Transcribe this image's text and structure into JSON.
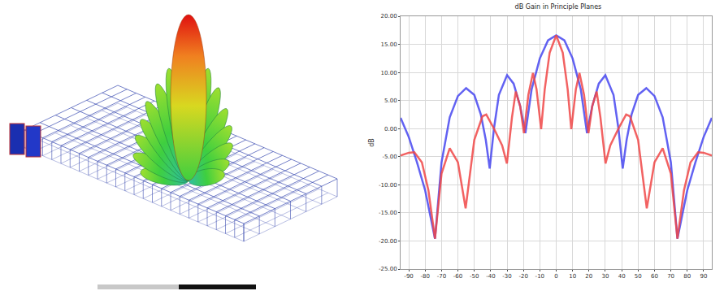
{
  "chart_data": {
    "type": "line",
    "title": "dB Gain in Principle Planes",
    "y_label": "dB",
    "xlim": [
      -95,
      95
    ],
    "xticks": [
      -90,
      -80,
      -70,
      -60,
      -50,
      -40,
      -30,
      -20,
      -10,
      0,
      10,
      20,
      30,
      40,
      50,
      60,
      70,
      80,
      90
    ],
    "ylim": [
      -25,
      20
    ],
    "yticks": [
      {
        "value": -25,
        "label": "-25.00"
      },
      {
        "value": -20,
        "label": "-20.00"
      },
      {
        "value": -15,
        "label": "-15.00"
      },
      {
        "value": -10,
        "label": "-10.00"
      },
      {
        "value": -5,
        "label": "-5.00"
      },
      {
        "value": 0,
        "label": "0.00"
      },
      {
        "value": 5,
        "label": "5.00"
      },
      {
        "value": 10,
        "label": "10.00"
      },
      {
        "value": 15,
        "label": "15.00"
      },
      {
        "value": 20,
        "label": "20.00"
      }
    ],
    "grid": true,
    "series": [
      {
        "color": "#4646f0",
        "line_style": "solid",
        "x": [
          -95,
          -90,
          -85,
          -80,
          -74,
          -70,
          -65,
          -60,
          -55,
          -50,
          -46,
          -43,
          -40.6,
          -38,
          -35,
          -30,
          -26,
          -22,
          -18.8,
          -15,
          -10,
          -5,
          0,
          5,
          10,
          15,
          18.8,
          22,
          26,
          30,
          35,
          38,
          40.6,
          43,
          46,
          50,
          55,
          60,
          65,
          70,
          74,
          80,
          85,
          90,
          95
        ],
        "values": [
          1.9,
          -1.5,
          -6,
          -11,
          -19.6,
          -6,
          2,
          5.8,
          7.2,
          6,
          2.5,
          -2,
          -7.1,
          0,
          6,
          9.5,
          8,
          4,
          -0.8,
          7,
          12.5,
          15.7,
          16.6,
          15.7,
          12.5,
          7,
          -0.8,
          4,
          8,
          9.5,
          6,
          0,
          -7.1,
          -2,
          2.5,
          6,
          7.2,
          5.8,
          2,
          -6,
          -19.6,
          -11,
          -6,
          -1.5,
          1.9
        ]
      },
      {
        "color": "#f04646",
        "line_style": "solid",
        "x": [
          -95,
          -90,
          -86.6,
          -82,
          -78,
          -74,
          -70,
          -65,
          -60,
          -55.3,
          -50,
          -45,
          -42.7,
          -38,
          -33,
          -30.1,
          -27,
          -24.7,
          -22,
          -19.7,
          -17,
          -14.2,
          -12,
          -9.2,
          -7,
          -4,
          0,
          4,
          7,
          9.2,
          12,
          14.2,
          17,
          19.7,
          22,
          24.7,
          27,
          30.1,
          33,
          38,
          42.7,
          45,
          50,
          55.3,
          60,
          65,
          70,
          74,
          78,
          82,
          86.6,
          90,
          95
        ],
        "values": [
          -4.8,
          -4.3,
          -4.2,
          -6,
          -11,
          -19.6,
          -8,
          -3.5,
          -6,
          -14.2,
          -2,
          2.2,
          2.5,
          0,
          -3,
          -6.2,
          2,
          6.6,
          4,
          -0.8,
          6,
          9.9,
          7,
          -0.1,
          7,
          13.5,
          16.6,
          13.5,
          7,
          -0.1,
          7,
          9.9,
          6,
          -0.8,
          4,
          6.6,
          2,
          -6.2,
          -3,
          0,
          2.5,
          2.2,
          -2,
          -14.2,
          -6,
          -3.5,
          -8,
          -19.6,
          -11,
          -6,
          -4.2,
          -4.3,
          -4.8
        ]
      }
    ]
  }
}
